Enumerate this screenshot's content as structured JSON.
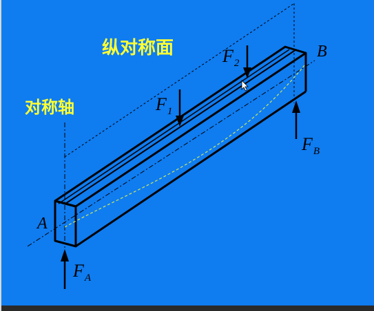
{
  "labels": {
    "plane": "纵对称面",
    "axis": "对称轴",
    "point_a": "A",
    "point_b": "B"
  },
  "forces": {
    "f1": {
      "base": "F",
      "sub": "1"
    },
    "f2": {
      "base": "F",
      "sub": "2"
    },
    "fa": {
      "base": "F",
      "sub": "A"
    },
    "fb": {
      "base": "F",
      "sub": "B"
    }
  },
  "colors": {
    "background": "#0f7cf0",
    "cjk_label": "#ffff33",
    "beam_edge": "#000000",
    "deflection_curve": "#cfe85a"
  },
  "icons": {
    "cursor": "mouse-pointer-icon"
  }
}
